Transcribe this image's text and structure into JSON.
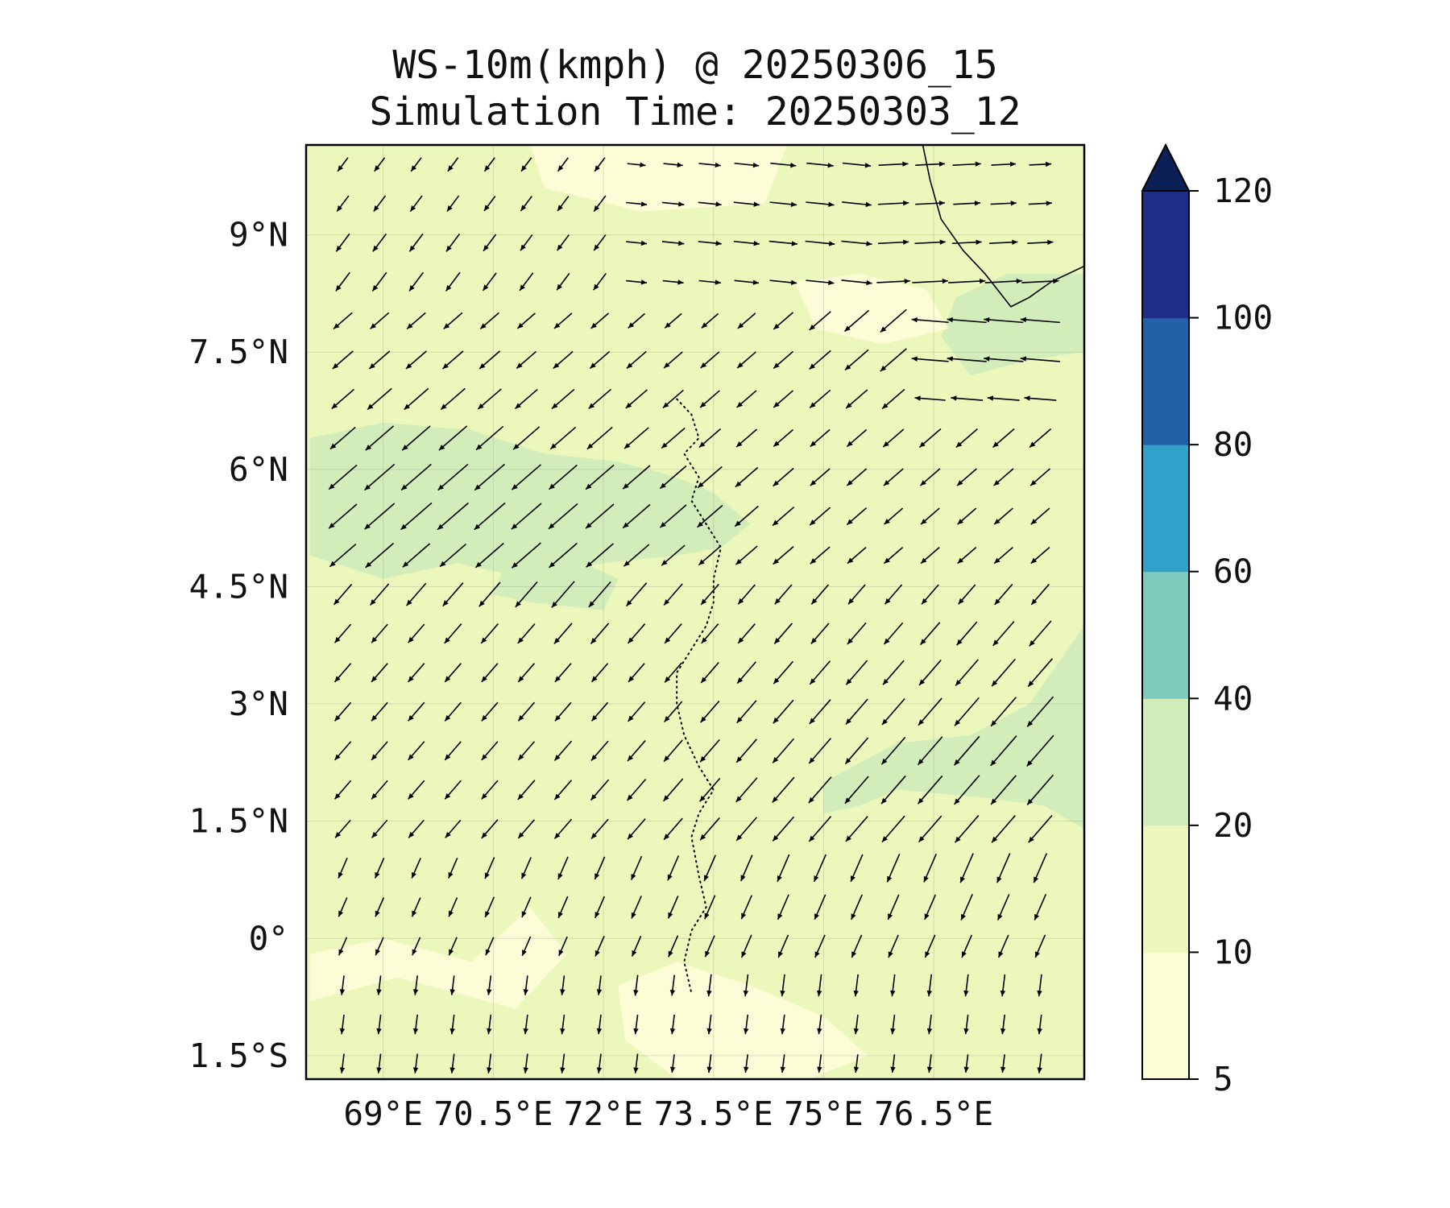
{
  "title_line1": "WS-10m(kmph) @ 20250306_15",
  "title_line2": "Simulation Time: 20250303_12",
  "map": {
    "lon_range": [
      67.95,
      78.55
    ],
    "lat_range": [
      -1.8,
      10.15
    ],
    "lon_ticks": [
      {
        "value": 69.0,
        "label": "69°E"
      },
      {
        "value": 70.5,
        "label": "70.5°E"
      },
      {
        "value": 72.0,
        "label": "72°E"
      },
      {
        "value": 73.5,
        "label": "73.5°E"
      },
      {
        "value": 75.0,
        "label": "75°E"
      },
      {
        "value": 76.5,
        "label": "76.5°E"
      }
    ],
    "lat_ticks": [
      {
        "value": 9.0,
        "label": "9°N"
      },
      {
        "value": 7.5,
        "label": "7.5°N"
      },
      {
        "value": 6.0,
        "label": "6°N"
      },
      {
        "value": 4.5,
        "label": "4.5°N"
      },
      {
        "value": 3.0,
        "label": "3°N"
      },
      {
        "value": 1.5,
        "label": "1.5°N"
      },
      {
        "value": 0.0,
        "label": "0°"
      },
      {
        "value": -1.5,
        "label": "1.5°S"
      }
    ],
    "gridlines": true
  },
  "colorbar": {
    "levels": [
      {
        "value": 5,
        "label": "5"
      },
      {
        "value": 10,
        "label": "10"
      },
      {
        "value": 20,
        "label": "20"
      },
      {
        "value": 40,
        "label": "40"
      },
      {
        "value": 60,
        "label": "60"
      },
      {
        "value": 80,
        "label": "80"
      },
      {
        "value": 100,
        "label": "100"
      },
      {
        "value": 120,
        "label": "120"
      }
    ],
    "colors": [
      "#fcfdd7",
      "#ecf7bb",
      "#d2edba",
      "#7dcbbc",
      "#31a1c9",
      "#2260a8",
      "#1f2d86"
    ],
    "extend_color": "#0c1f57",
    "extend": "max"
  },
  "field_regions": [
    {
      "name": "stronger-band-west",
      "level": "20-40",
      "outline": [
        [
          68.0,
          6.4
        ],
        [
          69.0,
          6.6
        ],
        [
          70.2,
          6.5
        ],
        [
          71.2,
          6.2
        ],
        [
          72.2,
          6.1
        ],
        [
          73.0,
          5.9
        ],
        [
          73.5,
          5.7
        ],
        [
          74.0,
          5.3
        ],
        [
          73.6,
          5.0
        ],
        [
          73.0,
          4.9
        ],
        [
          72.0,
          4.8
        ],
        [
          71.0,
          4.6
        ],
        [
          70.0,
          4.8
        ],
        [
          69.0,
          4.6
        ],
        [
          68.0,
          4.9
        ]
      ]
    },
    {
      "name": "stronger-band-west-lobe",
      "level": "20-40",
      "outline": [
        [
          70.7,
          4.9
        ],
        [
          71.5,
          4.9
        ],
        [
          72.2,
          4.6
        ],
        [
          72.0,
          4.2
        ],
        [
          71.0,
          4.3
        ],
        [
          70.5,
          4.4
        ]
      ]
    },
    {
      "name": "stronger-band-northeast",
      "level": "20-40",
      "outline": [
        [
          76.8,
          8.2
        ],
        [
          77.5,
          8.5
        ],
        [
          78.55,
          8.5
        ],
        [
          78.55,
          7.5
        ],
        [
          77.8,
          7.4
        ],
        [
          77.0,
          7.2
        ],
        [
          76.6,
          7.7
        ]
      ]
    },
    {
      "name": "stronger-band-southeast",
      "level": "20-40",
      "outline": [
        [
          75.0,
          2.0
        ],
        [
          76.0,
          2.5
        ],
        [
          77.0,
          2.6
        ],
        [
          77.8,
          3.0
        ],
        [
          78.55,
          4.0
        ],
        [
          78.55,
          1.4
        ],
        [
          78.0,
          1.7
        ],
        [
          77.2,
          1.8
        ],
        [
          76.0,
          1.9
        ],
        [
          75.5,
          1.7
        ],
        [
          75.0,
          1.6
        ]
      ]
    },
    {
      "name": "calm-north-central",
      "level": "5-10",
      "outline": [
        [
          71.0,
          10.15
        ],
        [
          74.5,
          10.15
        ],
        [
          74.2,
          9.4
        ],
        [
          72.5,
          9.3
        ],
        [
          71.2,
          9.6
        ]
      ]
    },
    {
      "name": "calm-north-east",
      "level": "5-10",
      "outline": [
        [
          74.6,
          8.4
        ],
        [
          75.5,
          8.5
        ],
        [
          76.4,
          8.3
        ],
        [
          76.7,
          7.8
        ],
        [
          75.8,
          7.6
        ],
        [
          74.9,
          7.8
        ]
      ]
    },
    {
      "name": "calm-south-central",
      "level": "5-10",
      "outline": [
        [
          72.2,
          -0.6
        ],
        [
          73.0,
          -0.3
        ],
        [
          74.0,
          -0.6
        ],
        [
          75.0,
          -1.0
        ],
        [
          75.6,
          -1.5
        ],
        [
          74.8,
          -1.8
        ],
        [
          73.0,
          -1.8
        ],
        [
          72.3,
          -1.3
        ]
      ]
    },
    {
      "name": "calm-southwest",
      "level": "5-10",
      "outline": [
        [
          68.0,
          -0.2
        ],
        [
          69.0,
          0.0
        ],
        [
          70.2,
          -0.3
        ],
        [
          71.0,
          0.4
        ],
        [
          71.5,
          -0.2
        ],
        [
          70.8,
          -0.9
        ],
        [
          69.2,
          -0.5
        ],
        [
          68.0,
          -0.8
        ]
      ]
    }
  ],
  "coastlines": [
    {
      "name": "india-southern-coast",
      "style": "solid",
      "points": [
        [
          76.35,
          10.15
        ],
        [
          76.45,
          9.7
        ],
        [
          76.6,
          9.2
        ],
        [
          76.9,
          8.8
        ],
        [
          77.2,
          8.5
        ],
        [
          77.55,
          8.08
        ],
        [
          77.8,
          8.2
        ],
        [
          78.1,
          8.4
        ],
        [
          78.55,
          8.6
        ]
      ]
    },
    {
      "name": "maldives-atolls",
      "style": "dotted",
      "points": [
        [
          73.0,
          6.9
        ],
        [
          73.2,
          6.7
        ],
        [
          73.3,
          6.4
        ],
        [
          73.1,
          6.2
        ],
        [
          73.3,
          5.9
        ],
        [
          73.2,
          5.6
        ],
        [
          73.4,
          5.3
        ],
        [
          73.6,
          5.0
        ],
        [
          73.5,
          4.6
        ],
        [
          73.5,
          4.3
        ],
        [
          73.4,
          4.0
        ],
        [
          73.2,
          3.7
        ],
        [
          73.0,
          3.4
        ],
        [
          73.0,
          3.0
        ],
        [
          73.1,
          2.6
        ],
        [
          73.3,
          2.2
        ],
        [
          73.5,
          1.9
        ],
        [
          73.3,
          1.6
        ],
        [
          73.2,
          1.3
        ],
        [
          73.3,
          0.8
        ],
        [
          73.4,
          0.4
        ],
        [
          73.2,
          0.1
        ],
        [
          73.1,
          -0.3
        ],
        [
          73.2,
          -0.7
        ]
      ]
    }
  ],
  "wind_rows": [
    {
      "lat": 9.9,
      "speeds": [
        6,
        6,
        6,
        6,
        6,
        6,
        6,
        6,
        7,
        8,
        10,
        12,
        13,
        14,
        15,
        16,
        16,
        15,
        12,
        10
      ]
    },
    {
      "lat": 9.4,
      "speeds": [
        8,
        8,
        8,
        8,
        7,
        7,
        7,
        8,
        9,
        10,
        11,
        13,
        14,
        15,
        16,
        17,
        16,
        14,
        13,
        11
      ]
    },
    {
      "lat": 8.9,
      "speeds": [
        10,
        10,
        10,
        10,
        9,
        8,
        8,
        8,
        9,
        10,
        11,
        13,
        15,
        16,
        17,
        17,
        17,
        16,
        15,
        13
      ]
    },
    {
      "lat": 8.4,
      "speeds": [
        11,
        11,
        11,
        11,
        10,
        10,
        9,
        9,
        9,
        9,
        10,
        12,
        14,
        15,
        17,
        19,
        21,
        22,
        22,
        22
      ]
    },
    {
      "lat": 7.9,
      "speeds": [
        12,
        12,
        12,
        12,
        12,
        11,
        11,
        11,
        10,
        10,
        10,
        11,
        13,
        15,
        18,
        20,
        22,
        24,
        24,
        24
      ]
    },
    {
      "lat": 7.4,
      "speeds": [
        14,
        14,
        14,
        14,
        14,
        13,
        13,
        13,
        13,
        12,
        12,
        12,
        13,
        15,
        17,
        20,
        22,
        24,
        24,
        24
      ]
    },
    {
      "lat": 6.9,
      "speeds": [
        16,
        18,
        18,
        18,
        17,
        16,
        16,
        16,
        15,
        14,
        13,
        13,
        13,
        14,
        15,
        16,
        17,
        18,
        18,
        18
      ]
    },
    {
      "lat": 6.4,
      "speeds": [
        19,
        22,
        22,
        22,
        21,
        20,
        19,
        19,
        18,
        17,
        15,
        14,
        13,
        13,
        13,
        14,
        15,
        15,
        15,
        15
      ]
    },
    {
      "lat": 5.9,
      "speeds": [
        22,
        24,
        24,
        24,
        24,
        23,
        22,
        22,
        21,
        20,
        18,
        16,
        14,
        13,
        13,
        13,
        13,
        13,
        13,
        13
      ]
    },
    {
      "lat": 5.4,
      "speeds": [
        22,
        24,
        25,
        25,
        25,
        24,
        23,
        22,
        21,
        20,
        19,
        17,
        15,
        14,
        13,
        12,
        12,
        12,
        12,
        12
      ]
    },
    {
      "lat": 4.9,
      "speeds": [
        20,
        22,
        21,
        20,
        22,
        23,
        22,
        21,
        19,
        17,
        16,
        15,
        14,
        13,
        12,
        12,
        12,
        12,
        12,
        12
      ]
    },
    {
      "lat": 4.4,
      "speeds": [
        14,
        15,
        16,
        17,
        18,
        19,
        20,
        19,
        17,
        15,
        14,
        13,
        13,
        13,
        13,
        13,
        13,
        13,
        14,
        14
      ]
    },
    {
      "lat": 3.9,
      "speeds": [
        12,
        12,
        12,
        13,
        13,
        13,
        14,
        14,
        13,
        13,
        13,
        13,
        14,
        14,
        15,
        15,
        16,
        17,
        18,
        19
      ]
    },
    {
      "lat": 3.4,
      "speeds": [
        12,
        12,
        12,
        12,
        12,
        12,
        12,
        12,
        12,
        13,
        14,
        15,
        16,
        17,
        18,
        18,
        19,
        20,
        21,
        22
      ]
    },
    {
      "lat": 2.9,
      "speeds": [
        12,
        12,
        12,
        12,
        12,
        12,
        12,
        12,
        13,
        14,
        15,
        16,
        17,
        18,
        19,
        20,
        21,
        22,
        23,
        24
      ]
    },
    {
      "lat": 2.4,
      "speeds": [
        12,
        12,
        12,
        12,
        12,
        12,
        13,
        13,
        14,
        15,
        16,
        17,
        18,
        19,
        20,
        21,
        22,
        23,
        24,
        25
      ]
    },
    {
      "lat": 1.9,
      "speeds": [
        12,
        12,
        12,
        12,
        12,
        13,
        13,
        14,
        15,
        16,
        17,
        18,
        19,
        20,
        21,
        22,
        22,
        23,
        23,
        24
      ]
    },
    {
      "lat": 1.4,
      "speeds": [
        11,
        11,
        11,
        11,
        12,
        12,
        13,
        13,
        14,
        15,
        16,
        17,
        18,
        19,
        19,
        20,
        20,
        21,
        21,
        21
      ]
    },
    {
      "lat": 0.9,
      "speeds": [
        10,
        10,
        10,
        10,
        11,
        11,
        12,
        12,
        13,
        14,
        15,
        15,
        16,
        16,
        16,
        17,
        17,
        18,
        18,
        18
      ]
    },
    {
      "lat": 0.4,
      "speeds": [
        9,
        9,
        9,
        9,
        10,
        10,
        11,
        11,
        12,
        12,
        13,
        13,
        14,
        14,
        14,
        14,
        14,
        15,
        15,
        15
      ]
    },
    {
      "lat": -0.1,
      "speeds": [
        8,
        8,
        8,
        8,
        8,
        9,
        9,
        10,
        10,
        11,
        11,
        12,
        12,
        12,
        12,
        12,
        12,
        12,
        12,
        12
      ]
    },
    {
      "lat": -0.6,
      "speeds": [
        8,
        8,
        8,
        8,
        8,
        8,
        8,
        8,
        9,
        9,
        10,
        10,
        10,
        10,
        10,
        10,
        10,
        10,
        10,
        10
      ]
    },
    {
      "lat": -1.1,
      "speeds": [
        8,
        8,
        8,
        8,
        8,
        8,
        8,
        8,
        8,
        8,
        8,
        8,
        8,
        8,
        8,
        8,
        8,
        8,
        8,
        8
      ]
    },
    {
      "lat": -1.6,
      "speeds": [
        8,
        8,
        8,
        8,
        8,
        8,
        8,
        8,
        8,
        7,
        7,
        7,
        7,
        7,
        7,
        7,
        7,
        7,
        7,
        8
      ]
    }
  ],
  "wind_lons": [
    68.45,
    68.95,
    69.45,
    69.95,
    70.45,
    70.95,
    71.45,
    71.95,
    72.45,
    72.95,
    73.45,
    73.95,
    74.45,
    74.95,
    75.45,
    75.95,
    76.45,
    76.95,
    77.45,
    77.95
  ]
}
